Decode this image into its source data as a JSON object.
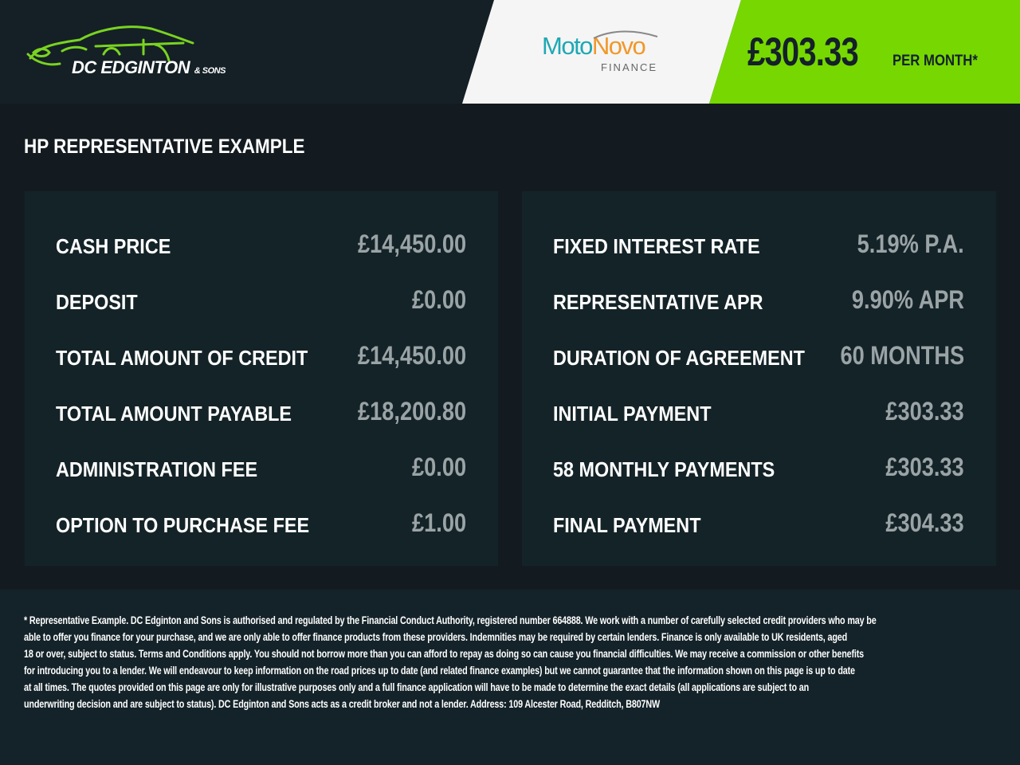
{
  "header": {
    "dealer_logo": "DC Edginton & Sons",
    "dealer_logo_main": "DC EDGINTON",
    "dealer_logo_small": "& SONS",
    "lender_logo_a": "Moto",
    "lender_logo_b": "Novo",
    "lender_logo_sub": "FINANCE",
    "monthly_price": "£303.33",
    "per_month": "PER MONTH*",
    "colors": {
      "accent": "#76d800",
      "background": "#131b20",
      "panel": "#142328"
    }
  },
  "title": "HP REPRESENTATIVE EXAMPLE",
  "left_panel": [
    {
      "label": "CASH PRICE",
      "value": "£14,450.00"
    },
    {
      "label": "DEPOSIT",
      "value": "£0.00"
    },
    {
      "label": "TOTAL AMOUNT OF CREDIT",
      "value": "£14,450.00"
    },
    {
      "label": "TOTAL AMOUNT PAYABLE",
      "value": "£18,200.80"
    },
    {
      "label": "ADMINISTRATION FEE",
      "value": "£0.00"
    },
    {
      "label": "OPTION TO PURCHASE FEE",
      "value": "£1.00"
    }
  ],
  "right_panel": [
    {
      "label": "FIXED INTEREST RATE",
      "value": "5.19% P.A."
    },
    {
      "label": "REPRESENTATIVE APR",
      "value": "9.90% APR"
    },
    {
      "label": "DURATION OF AGREEMENT",
      "value": "60 MONTHS"
    },
    {
      "label": "INITIAL PAYMENT",
      "value": "£303.33"
    },
    {
      "label": "58 MONTHLY PAYMENTS",
      "value": "£303.33"
    },
    {
      "label": "FINAL PAYMENT",
      "value": "£304.33"
    }
  ],
  "footer": {
    "lines": [
      "* Representative Example. DC Edginton and Sons is authorised and regulated by the Financial Conduct Authority, registered number 664888. We work with a number of carefully selected credit providers who may be",
      "able to offer you finance for your purchase, and we are only able to offer finance products from these providers. Indemnities may be required by certain lenders. Finance is only available to UK residents, aged",
      "18 or over, subject to status. Terms and Conditions apply. You should not borrow more than you can afford to repay as doing so can cause you financial difficulties. We may receive a commission or other benefits",
      "for introducing you to a lender. We will endeavour to keep information on the road prices up to date (and related finance examples) but we cannot guarantee that the information shown on this page is up to date",
      "at all times. The quotes provided on this page are only for illustrative purposes only and a full finance application will have to be made to determine the exact details (all applications are subject to an",
      "underwriting decision and are subject to status). DC Edginton and Sons acts as a credit broker and not a lender. Address: 109 Alcester Road, Redditch, B807NW"
    ]
  }
}
